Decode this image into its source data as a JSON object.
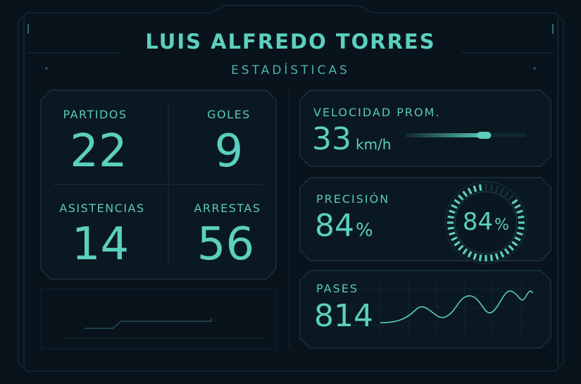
{
  "header": {
    "title": "LUIS ALFREDO TORRES",
    "subtitle": "ESTADÍSTICAS"
  },
  "stats": [
    {
      "label": "PARTIDOS",
      "value": "22"
    },
    {
      "label": "GOLES",
      "value": "9"
    },
    {
      "label": "ASISTENCIAS",
      "value": "14"
    },
    {
      "label": "ARRESTAS",
      "value": "56"
    }
  ],
  "speed": {
    "label": "VELOCIDAD PROM.",
    "value": "33",
    "unit": "km/h",
    "level": 0.7
  },
  "precision": {
    "label": "PRECISIÓN",
    "value": "84",
    "unit": "%",
    "gauge_value": "84",
    "gauge_unit": "%",
    "level": 0.84
  },
  "passes": {
    "label": "PASES",
    "value": "814"
  },
  "colors": {
    "accent": "#5ccfbe",
    "panel_border": "#1e3a45",
    "background": "#08131c"
  }
}
